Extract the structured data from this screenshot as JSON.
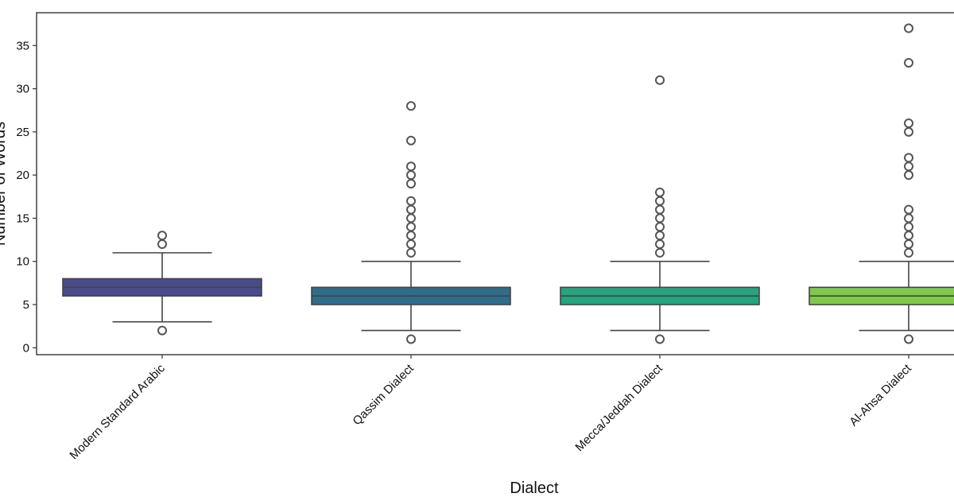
{
  "chart_data": {
    "type": "box",
    "title": "",
    "xlabel": "Dialect",
    "ylabel": "Number of Words",
    "ylim": [
      -0.8,
      38.8
    ],
    "yticks": [
      0,
      5,
      10,
      15,
      20,
      25,
      30,
      35
    ],
    "grid": false,
    "categories": [
      "Modern Standard Arabic",
      "Qassim Dialect",
      "Mecca/Jeddah Dialect",
      "Al-Ahsa Dialect"
    ],
    "series": [
      {
        "category": "Modern Standard Arabic",
        "color": "#484c8e",
        "whisker_low": 3,
        "q1": 6,
        "median": 7,
        "q3": 8,
        "whisker_high": 11,
        "outliers": [
          2,
          12,
          13
        ]
      },
      {
        "category": "Qassim Dialect",
        "color": "#2f6d8a",
        "whisker_low": 2,
        "q1": 5,
        "median": 6,
        "q3": 7,
        "whisker_high": 10,
        "outliers": [
          1,
          11,
          12,
          13,
          14,
          15,
          16,
          17,
          19,
          20,
          21,
          24,
          28
        ]
      },
      {
        "category": "Mecca/Jeddah Dialect",
        "color": "#25a47f",
        "whisker_low": 2,
        "q1": 5,
        "median": 6,
        "q3": 7,
        "whisker_high": 10,
        "outliers": [
          1,
          11,
          12,
          13,
          14,
          15,
          16,
          17,
          18,
          31
        ]
      },
      {
        "category": "Al-Ahsa Dialect",
        "color": "#7fca4c",
        "whisker_low": 2,
        "q1": 5,
        "median": 6,
        "q3": 7,
        "whisker_high": 10,
        "outliers": [
          1,
          11,
          12,
          13,
          14,
          15,
          16,
          20,
          21,
          22,
          25,
          26,
          33,
          37
        ]
      }
    ]
  }
}
